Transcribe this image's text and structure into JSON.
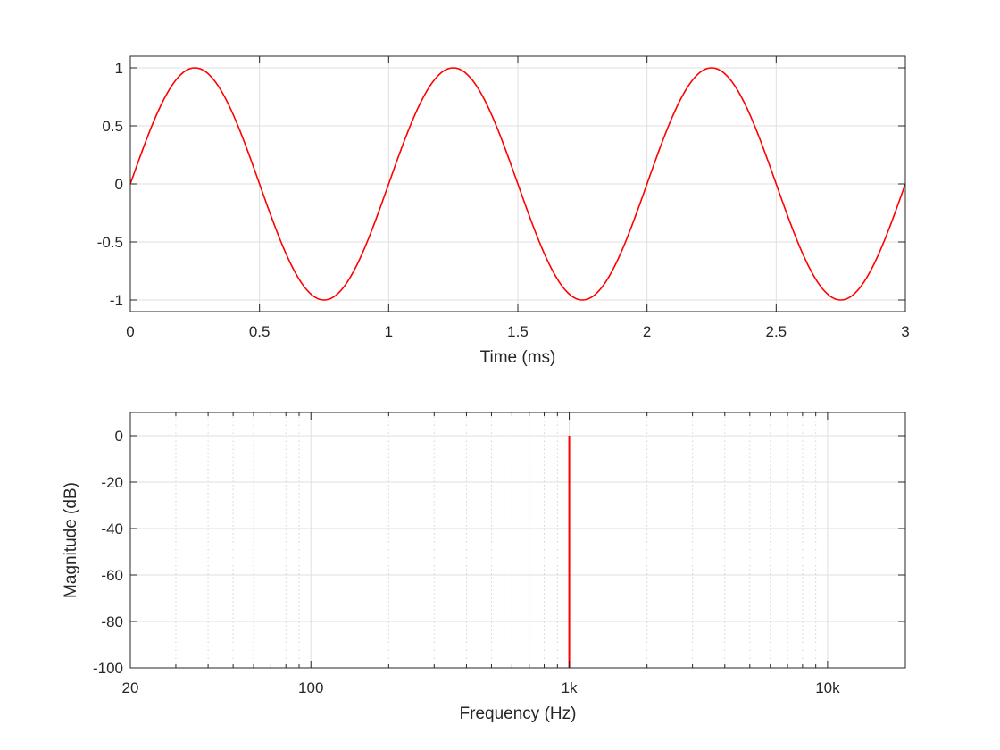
{
  "chart_data": [
    {
      "type": "line",
      "xlabel": "Time (ms)",
      "ylabel": "",
      "xlim": [
        0,
        3
      ],
      "ylim": [
        -1.1,
        1.1
      ],
      "grid": true,
      "xticks": [
        0,
        0.5,
        1,
        1.5,
        2,
        2.5,
        3
      ],
      "xtick_labels": [
        "0",
        "0.5",
        "1",
        "1.5",
        "2",
        "2.5",
        "3"
      ],
      "yticks": [
        1,
        0.5,
        0,
        -0.5,
        -1
      ],
      "ytick_labels": [
        "1",
        "0.5",
        "0",
        "-0.5",
        "-1"
      ],
      "series": [
        {
          "function": "sine",
          "frequency_hz": 1000,
          "amplitude": 1,
          "color": "#ff0000"
        }
      ]
    },
    {
      "type": "line",
      "xlabel": "Frequency (Hz)",
      "ylabel": "Magnitude (dB)",
      "xscale": "log",
      "xlim": [
        20,
        20000
      ],
      "ylim": [
        -100,
        10
      ],
      "grid": true,
      "xticks": [
        20,
        100,
        1000,
        10000
      ],
      "xtick_labels": [
        "20",
        "100",
        "1k",
        "10k"
      ],
      "yticks": [
        0,
        -20,
        -40,
        -60,
        -80,
        -100
      ],
      "ytick_labels": [
        "0",
        "-20",
        "-40",
        "-60",
        "-80",
        "-100"
      ],
      "series": [
        {
          "x": [
            1000,
            1000
          ],
          "y": [
            -100,
            0
          ],
          "color": "#ff0000"
        }
      ]
    }
  ]
}
